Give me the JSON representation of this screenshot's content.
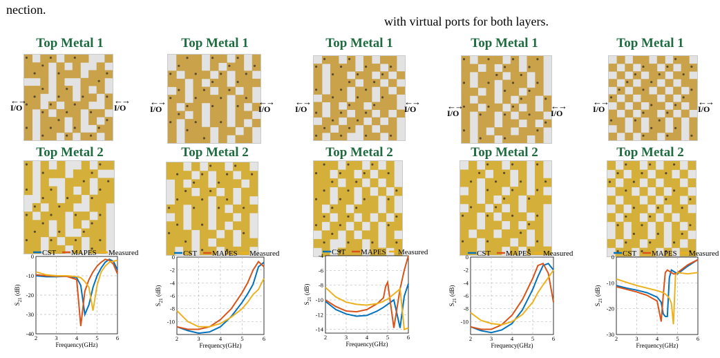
{
  "text_fragments": {
    "left": "nection.",
    "right": "with virtual ports for both layers."
  },
  "labels": {
    "top_metal_1": "Top Metal 1",
    "top_metal_2": "Top Metal 2",
    "io": "I/O",
    "xlabel": "Frequency(GHz)",
    "ylabel_main": "S",
    "ylabel_sub": "21",
    "ylabel_unit": " (dB)"
  },
  "legend": [
    "CST",
    "MAPES",
    "Measured"
  ],
  "colors": {
    "CST": "#0072BD",
    "MAPES": "#D95319",
    "Measured": "#EDB120",
    "title_green": "#1e6b3f",
    "copper": "#c9a24a",
    "gold": "#d4b03a"
  },
  "layout_patterns": [
    "101101110011110101001011101110111001010011101110110101011001101101110101110011010111011010111010101101110100111011010110110110110",
    "110101101110110101011101011011011101011011010110111010110110101101111011010110110101110101101101011011010110111011010101110101101",
    "011010110101110110101011010111011010101101101011011101101010110110101011101101101010110111010110110101011011010101101101011010110",
    "101011011101010110110101110101101101011011010111011010101101110101101011011010110101101110110101011011010111010110110101101011011",
    "010110101101011011010101101101011010110101011010110101011011010101101011010110101011010110101101010110101101011010101101011010101"
  ],
  "chart_data": [
    {
      "type": "line",
      "x": [
        2,
        2.5,
        3,
        3.5,
        4,
        4.2,
        4.4,
        4.6,
        4.8,
        5,
        5.2,
        5.4,
        5.6,
        5.8,
        6
      ],
      "xlim": [
        2,
        6
      ],
      "ylim": [
        -40,
        0
      ],
      "xticks": [
        2,
        3,
        4,
        5,
        6
      ],
      "yticks": [
        0,
        -10,
        -20,
        -30,
        -40
      ],
      "xlabel": "Frequency(GHz)",
      "ylabel": "S21 (dB)",
      "grid": true,
      "legend": "top",
      "series": [
        {
          "name": "CST",
          "values": [
            -10,
            -10.5,
            -10.5,
            -10.3,
            -11,
            -15,
            -30,
            -25,
            -16,
            -10,
            -6,
            -3,
            -1.5,
            -2.5,
            -7
          ]
        },
        {
          "name": "MAPES",
          "values": [
            -9.5,
            -10,
            -10.2,
            -10.3,
            -12,
            -36,
            -18,
            -12,
            -8,
            -5,
            -3,
            -1.5,
            -2,
            -4,
            -9
          ]
        },
        {
          "name": "Measured",
          "values": [
            -8,
            -9.5,
            -10,
            -10,
            -10.5,
            -11,
            -13,
            -16,
            -28,
            -15,
            -8,
            -5,
            -3,
            -2.5,
            -2
          ]
        }
      ]
    },
    {
      "type": "line",
      "x": [
        2,
        2.5,
        3,
        3.5,
        4,
        4.5,
        5,
        5.25,
        5.5,
        5.75,
        6
      ],
      "xlim": [
        2,
        6
      ],
      "ylim": [
        -12,
        0
      ],
      "xticks": [
        2,
        3,
        4,
        5,
        6
      ],
      "yticks": [
        0,
        -2,
        -4,
        -6,
        -8,
        -10
      ],
      "xlabel": "Frequency(GHz)",
      "ylabel": "S21 (dB)",
      "grid": true,
      "legend": "top",
      "series": [
        {
          "name": "CST",
          "values": [
            -10.8,
            -11.4,
            -11.8,
            -11.6,
            -10.8,
            -9.2,
            -7,
            -5.7,
            -4.2,
            -1.5,
            -0.8
          ]
        },
        {
          "name": "MAPES",
          "values": [
            -10.8,
            -11.2,
            -11.2,
            -10.8,
            -9.7,
            -8,
            -5.5,
            -4,
            -2,
            -0.7,
            -1.5
          ]
        },
        {
          "name": "Measured",
          "values": [
            -8.3,
            -10,
            -10.8,
            -10.8,
            -10.3,
            -9.3,
            -8,
            -7,
            -5.8,
            -5,
            -3.3
          ]
        }
      ]
    },
    {
      "type": "line",
      "x": [
        2,
        2.5,
        3,
        3.5,
        4,
        4.5,
        4.8,
        4.9,
        5,
        5.3,
        5.6,
        5.8,
        6
      ],
      "xlim": [
        2,
        6
      ],
      "ylim": [
        -14.5,
        -4
      ],
      "xticks": [
        2,
        3,
        4,
        5,
        6
      ],
      "yticks": [
        -4,
        -6,
        -8,
        -10,
        -12,
        -14
      ],
      "xlabel": "Frequency(GHz)",
      "ylabel": "S21 (dB)",
      "grid": true,
      "legend": "top",
      "series": [
        {
          "name": "CST",
          "values": [
            -10.2,
            -11.3,
            -11.9,
            -12.2,
            -12.1,
            -11.5,
            -11,
            -10.8,
            -10.6,
            -10,
            -13.8,
            -9.5,
            -7.8
          ]
        },
        {
          "name": "MAPES",
          "values": [
            -10,
            -10.9,
            -11.5,
            -11.6,
            -11.3,
            -10.5,
            -9.7,
            -8.2,
            -7.6,
            -13.8,
            -8.5,
            -6,
            -4
          ]
        },
        {
          "name": "Measured",
          "values": [
            -8.3,
            -9.6,
            -10.3,
            -10.6,
            -10.7,
            -10.5,
            -10.2,
            -10,
            -9.9,
            -9.2,
            -8.5,
            -14,
            -13.8
          ]
        }
      ]
    },
    {
      "type": "line",
      "x": [
        2,
        2.5,
        3,
        3.5,
        4,
        4.5,
        5,
        5.25,
        5.5,
        5.75,
        6
      ],
      "xlim": [
        2,
        6
      ],
      "ylim": [
        -12,
        0
      ],
      "xticks": [
        2,
        3,
        4,
        5,
        6
      ],
      "yticks": [
        0,
        -2,
        -4,
        -6,
        -8,
        -10
      ],
      "xlabel": "Frequency(GHz)",
      "ylabel": "S21 (dB)",
      "grid": true,
      "legend": "top",
      "series": [
        {
          "name": "CST",
          "values": [
            -10.8,
            -11.4,
            -11.7,
            -11.3,
            -10.3,
            -8.2,
            -5,
            -3,
            -1.3,
            -1,
            -2
          ]
        },
        {
          "name": "MAPES",
          "values": [
            -10.8,
            -11.2,
            -11.2,
            -10.5,
            -9,
            -6.6,
            -3.3,
            -1.3,
            -1,
            -2.5,
            -7
          ]
        },
        {
          "name": "Measured",
          "values": [
            -8.6,
            -9.8,
            -10.3,
            -10.5,
            -10,
            -8.9,
            -7,
            -5.5,
            -4.3,
            -3.2,
            -2
          ]
        }
      ]
    },
    {
      "type": "line",
      "x": [
        2,
        2.5,
        3,
        3.5,
        4,
        4.2,
        4.3,
        4.4,
        4.5,
        4.6,
        4.7,
        4.8,
        4.9,
        5,
        5.5,
        6
      ],
      "xlim": [
        2,
        6
      ],
      "ylim": [
        -30,
        0
      ],
      "xticks": [
        2,
        3,
        4,
        5,
        6
      ],
      "yticks": [
        0,
        -10,
        -20,
        -30
      ],
      "xlabel": "Frequency(GHz)",
      "ylabel": "S21 (dB)",
      "grid": true,
      "legend": "top",
      "series": [
        {
          "name": "CST",
          "values": [
            -11,
            -12,
            -12.8,
            -13.8,
            -15.5,
            -17.5,
            -22,
            -23,
            -23,
            -8,
            -5,
            -5.5,
            -6,
            -6.5,
            -3.5,
            -1
          ]
        },
        {
          "name": "MAPES",
          "values": [
            -11.5,
            -12.5,
            -13.5,
            -14.8,
            -17,
            -25,
            -15,
            -6,
            -5,
            -5.5,
            -6,
            -6.5,
            -6.5,
            -6,
            -3,
            -1
          ]
        },
        {
          "name": "Measured",
          "values": [
            -8.5,
            -9.8,
            -11,
            -12,
            -13,
            -13.5,
            -13.8,
            -14.3,
            -15,
            -16,
            -18,
            -26,
            -7,
            -6,
            -6.5,
            -6
          ]
        }
      ]
    }
  ]
}
